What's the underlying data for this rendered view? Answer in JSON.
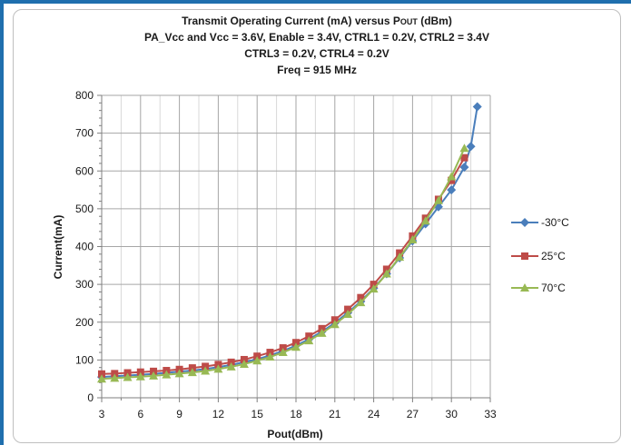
{
  "chart_data": {
    "type": "line",
    "title": {
      "line1_pre": "Transmit Operating Current (mA) versus P",
      "line1_sub": "OUT",
      "line1_post": " (dBm)",
      "line2": "PA_Vcc and Vcc = 3.6V, Enable = 3.4V, CTRL1 = 0.2V, CTRL2 = 3.4V",
      "line3": "CTRL3 = 0.2V, CTRL4 = 0.2V",
      "line4": "Freq = 915 MHz"
    },
    "xlabel": "Pout(dBm)",
    "ylabel": "Current(mA)",
    "xlim": [
      3,
      33
    ],
    "ylim": [
      0,
      800
    ],
    "xticks": [
      3,
      6,
      9,
      12,
      15,
      18,
      21,
      24,
      27,
      30,
      33
    ],
    "yticks": [
      0,
      100,
      200,
      300,
      400,
      500,
      600,
      700,
      800
    ],
    "grid": true,
    "legend_position": "right",
    "series": [
      {
        "name": "-30°C",
        "color": "#4a7ebb",
        "marker": "diamond",
        "points": [
          [
            3,
            55
          ],
          [
            4,
            57
          ],
          [
            5,
            59
          ],
          [
            6,
            61
          ],
          [
            7,
            63
          ],
          [
            8,
            66
          ],
          [
            9,
            69
          ],
          [
            10,
            72
          ],
          [
            11,
            76
          ],
          [
            12,
            81
          ],
          [
            13,
            87
          ],
          [
            14,
            94
          ],
          [
            15,
            102
          ],
          [
            16,
            112
          ],
          [
            17,
            124
          ],
          [
            18,
            138
          ],
          [
            19,
            155
          ],
          [
            20,
            175
          ],
          [
            21,
            198
          ],
          [
            22,
            225
          ],
          [
            23,
            255
          ],
          [
            24,
            290
          ],
          [
            25,
            328
          ],
          [
            26,
            370
          ],
          [
            27,
            415
          ],
          [
            28,
            460
          ],
          [
            29,
            505
          ],
          [
            30,
            550
          ],
          [
            31,
            610
          ],
          [
            31.5,
            665
          ],
          [
            32,
            770
          ]
        ]
      },
      {
        "name": "25°C",
        "color": "#be4b48",
        "marker": "square",
        "points": [
          [
            3,
            63
          ],
          [
            4,
            64
          ],
          [
            5,
            66
          ],
          [
            6,
            68
          ],
          [
            7,
            70
          ],
          [
            8,
            72
          ],
          [
            9,
            75
          ],
          [
            10,
            79
          ],
          [
            11,
            83
          ],
          [
            12,
            88
          ],
          [
            13,
            94
          ],
          [
            14,
            101
          ],
          [
            15,
            110
          ],
          [
            16,
            120
          ],
          [
            17,
            132
          ],
          [
            18,
            146
          ],
          [
            19,
            163
          ],
          [
            20,
            183
          ],
          [
            21,
            206
          ],
          [
            22,
            234
          ],
          [
            23,
            265
          ],
          [
            24,
            300
          ],
          [
            25,
            340
          ],
          [
            26,
            383
          ],
          [
            27,
            428
          ],
          [
            28,
            475
          ],
          [
            29,
            525
          ],
          [
            30,
            575
          ],
          [
            31,
            635
          ]
        ]
      },
      {
        "name": "70°C",
        "color": "#98b954",
        "marker": "triangle",
        "points": [
          [
            3,
            50
          ],
          [
            4,
            52
          ],
          [
            5,
            54
          ],
          [
            6,
            56
          ],
          [
            7,
            58
          ],
          [
            8,
            61
          ],
          [
            9,
            64
          ],
          [
            10,
            67
          ],
          [
            11,
            71
          ],
          [
            12,
            76
          ],
          [
            13,
            82
          ],
          [
            14,
            89
          ],
          [
            15,
            98
          ],
          [
            16,
            108
          ],
          [
            17,
            120
          ],
          [
            18,
            134
          ],
          [
            19,
            151
          ],
          [
            20,
            171
          ],
          [
            21,
            194
          ],
          [
            22,
            221
          ],
          [
            23,
            252
          ],
          [
            24,
            288
          ],
          [
            25,
            328
          ],
          [
            26,
            372
          ],
          [
            27,
            418
          ],
          [
            28,
            468
          ],
          [
            29,
            522
          ],
          [
            30,
            585
          ],
          [
            31,
            660
          ]
        ]
      }
    ]
  }
}
